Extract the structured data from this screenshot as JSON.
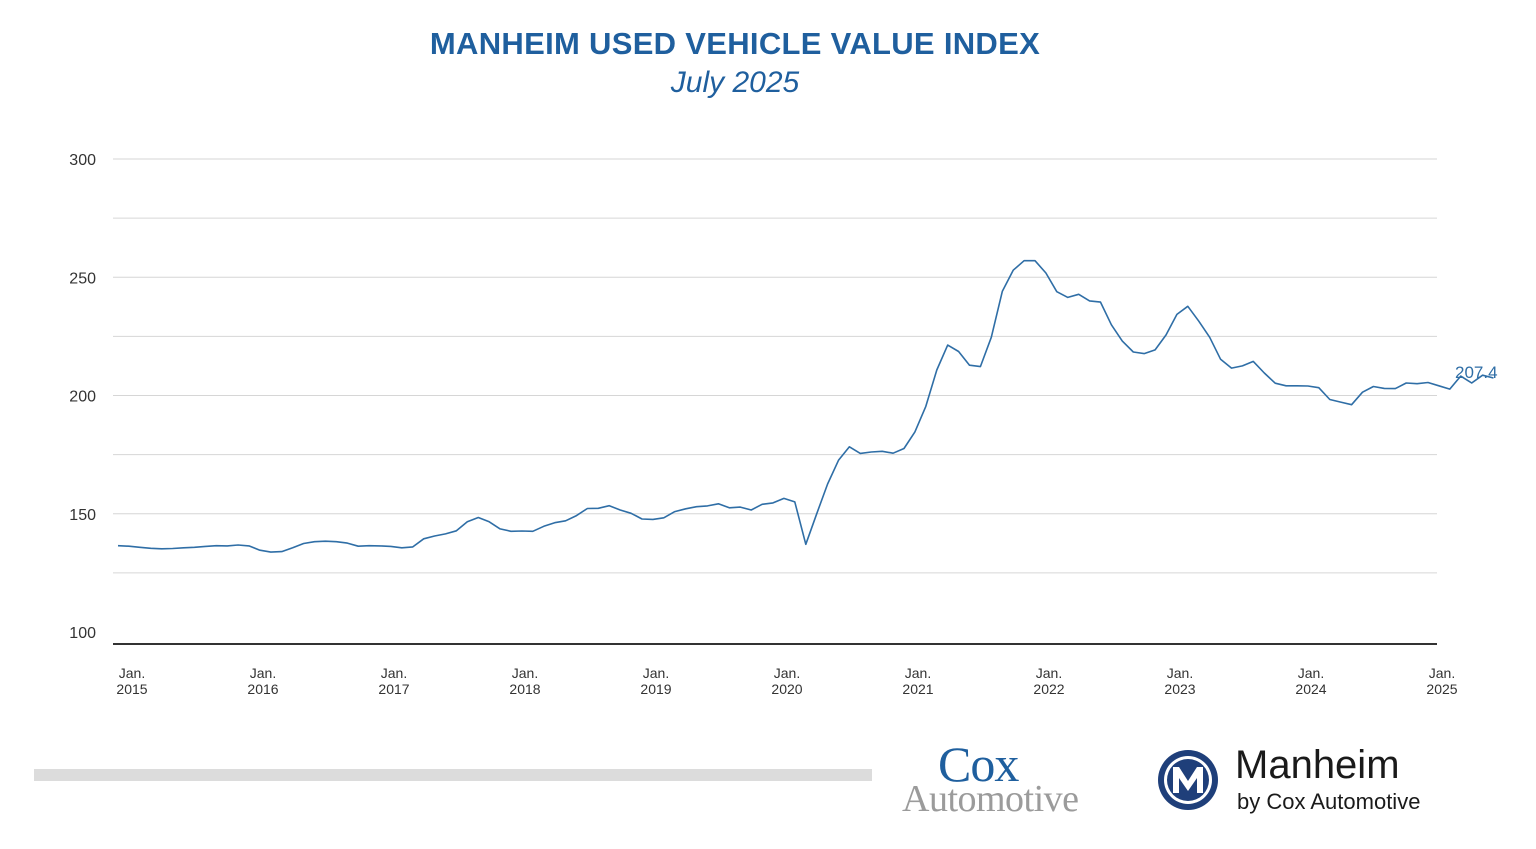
{
  "chart_data": {
    "type": "line",
    "title": "MANHEIM USED VEHICLE VALUE INDEX",
    "subtitle": "July 2025",
    "ylim": [
      100,
      300
    ],
    "yticks": [
      100,
      150,
      200,
      250,
      300
    ],
    "grid": true,
    "x_tick_labels": [
      {
        "line1": "Jan.",
        "line2": "2015",
        "date": "2015-01"
      },
      {
        "line1": "Jan.",
        "line2": "2016",
        "date": "2016-01"
      },
      {
        "line1": "Jan.",
        "line2": "2017",
        "date": "2017-01"
      },
      {
        "line1": "Jan.",
        "line2": "2018",
        "date": "2018-01"
      },
      {
        "line1": "Jan.",
        "line2": "2019",
        "date": "2019-01"
      },
      {
        "line1": "Jan.",
        "line2": "2020",
        "date": "2020-01"
      },
      {
        "line1": "Jan.",
        "line2": "2021",
        "date": "2021-01"
      },
      {
        "line1": "Jan.",
        "line2": "2022",
        "date": "2022-01"
      },
      {
        "line1": "Jan.",
        "line2": "2023",
        "date": "2023-01"
      },
      {
        "line1": "Jan.",
        "line2": "2024",
        "date": "2024-01"
      },
      {
        "line1": "Jan.",
        "line2": "2025",
        "date": "2025-01"
      }
    ],
    "x": [
      "2015-01",
      "2015-02",
      "2015-03",
      "2015-04",
      "2015-05",
      "2015-06",
      "2015-07",
      "2015-08",
      "2015-09",
      "2015-10",
      "2015-11",
      "2015-12",
      "2016-01",
      "2016-02",
      "2016-03",
      "2016-04",
      "2016-05",
      "2016-06",
      "2016-07",
      "2016-08",
      "2016-09",
      "2016-10",
      "2016-11",
      "2016-12",
      "2017-01",
      "2017-02",
      "2017-03",
      "2017-04",
      "2017-05",
      "2017-06",
      "2017-07",
      "2017-08",
      "2017-09",
      "2017-10",
      "2017-11",
      "2017-12",
      "2018-01",
      "2018-02",
      "2018-03",
      "2018-04",
      "2018-05",
      "2018-06",
      "2018-07",
      "2018-08",
      "2018-09",
      "2018-10",
      "2018-11",
      "2018-12",
      "2019-01",
      "2019-02",
      "2019-03",
      "2019-04",
      "2019-05",
      "2019-06",
      "2019-07",
      "2019-08",
      "2019-09",
      "2019-10",
      "2019-11",
      "2019-12",
      "2020-01",
      "2020-02",
      "2020-03",
      "2020-04",
      "2020-05",
      "2020-06",
      "2020-07",
      "2020-08",
      "2020-09",
      "2020-10",
      "2020-11",
      "2020-12",
      "2021-01",
      "2021-02",
      "2021-03",
      "2021-04",
      "2021-05",
      "2021-06",
      "2021-07",
      "2021-08",
      "2021-09",
      "2021-10",
      "2021-11",
      "2021-12",
      "2022-01",
      "2022-02",
      "2022-03",
      "2022-04",
      "2022-05",
      "2022-06",
      "2022-07",
      "2022-08",
      "2022-09",
      "2022-10",
      "2022-11",
      "2022-12",
      "2023-01",
      "2023-02",
      "2023-03",
      "2023-04",
      "2023-05",
      "2023-06",
      "2023-07",
      "2023-08",
      "2023-09",
      "2023-10",
      "2023-11",
      "2023-12",
      "2024-01",
      "2024-02",
      "2024-03",
      "2024-04",
      "2024-05",
      "2024-06",
      "2024-07",
      "2024-08",
      "2024-09",
      "2024-10",
      "2024-11",
      "2024-12",
      "2025-01",
      "2025-02",
      "2025-03",
      "2025-04",
      "2025-05",
      "2025-06",
      "2025-07"
    ],
    "series": [
      {
        "color": "#2f6ea6",
        "values": [
          136.5,
          136.3,
          135.8,
          135.4,
          135.2,
          135.3,
          135.6,
          135.8,
          136.2,
          136.5,
          136.4,
          136.8,
          136.4,
          134.6,
          133.8,
          134.0,
          135.6,
          137.4,
          138.2,
          138.4,
          138.2,
          137.6,
          136.3,
          136.5,
          136.4,
          136.2,
          135.6,
          136.0,
          139.4,
          140.6,
          141.5,
          142.8,
          146.6,
          148.4,
          146.6,
          143.6,
          142.6,
          142.7,
          142.6,
          144.7,
          146.2,
          147.0,
          149.2,
          152.2,
          152.3,
          153.4,
          151.6,
          150.2,
          147.8,
          147.6,
          148.3,
          150.9,
          152.1,
          153.0,
          153.3,
          154.2,
          152.5,
          152.8,
          151.6,
          154.0,
          154.6,
          156.5,
          155.0,
          137.1,
          150.0,
          162.6,
          172.6,
          178.3,
          175.5,
          176.1,
          176.4,
          175.6,
          177.6,
          184.6,
          195.4,
          210.8,
          221.3,
          218.6,
          212.8,
          212.2,
          224.6,
          244.0,
          253.0,
          257.0,
          257.0,
          251.8,
          243.9,
          241.5,
          242.8,
          240.0,
          239.5,
          229.9,
          223.0,
          218.4,
          217.7,
          219.3,
          225.6,
          234.3,
          237.7,
          231.4,
          224.6,
          215.3,
          211.6,
          212.5,
          214.4,
          209.5,
          205.2,
          204.1,
          204.1,
          204.0,
          203.3,
          198.3,
          197.2,
          196.1,
          201.4,
          203.8,
          203.0,
          202.9,
          205.3,
          205.0,
          205.5,
          204.1,
          202.7,
          208.2,
          205.3,
          208.6,
          207.4
        ]
      }
    ],
    "end_label": "207.4"
  },
  "logos": {
    "cox_line1": "Cox",
    "cox_line2": "Automotive",
    "manheim_name": "Manheim",
    "manheim_tagline": "by Cox Automotive"
  },
  "colors": {
    "accent": "#1f5f9e",
    "line": "#2f6ea6",
    "grid": "#d6d6d6",
    "axis": "#333333"
  }
}
